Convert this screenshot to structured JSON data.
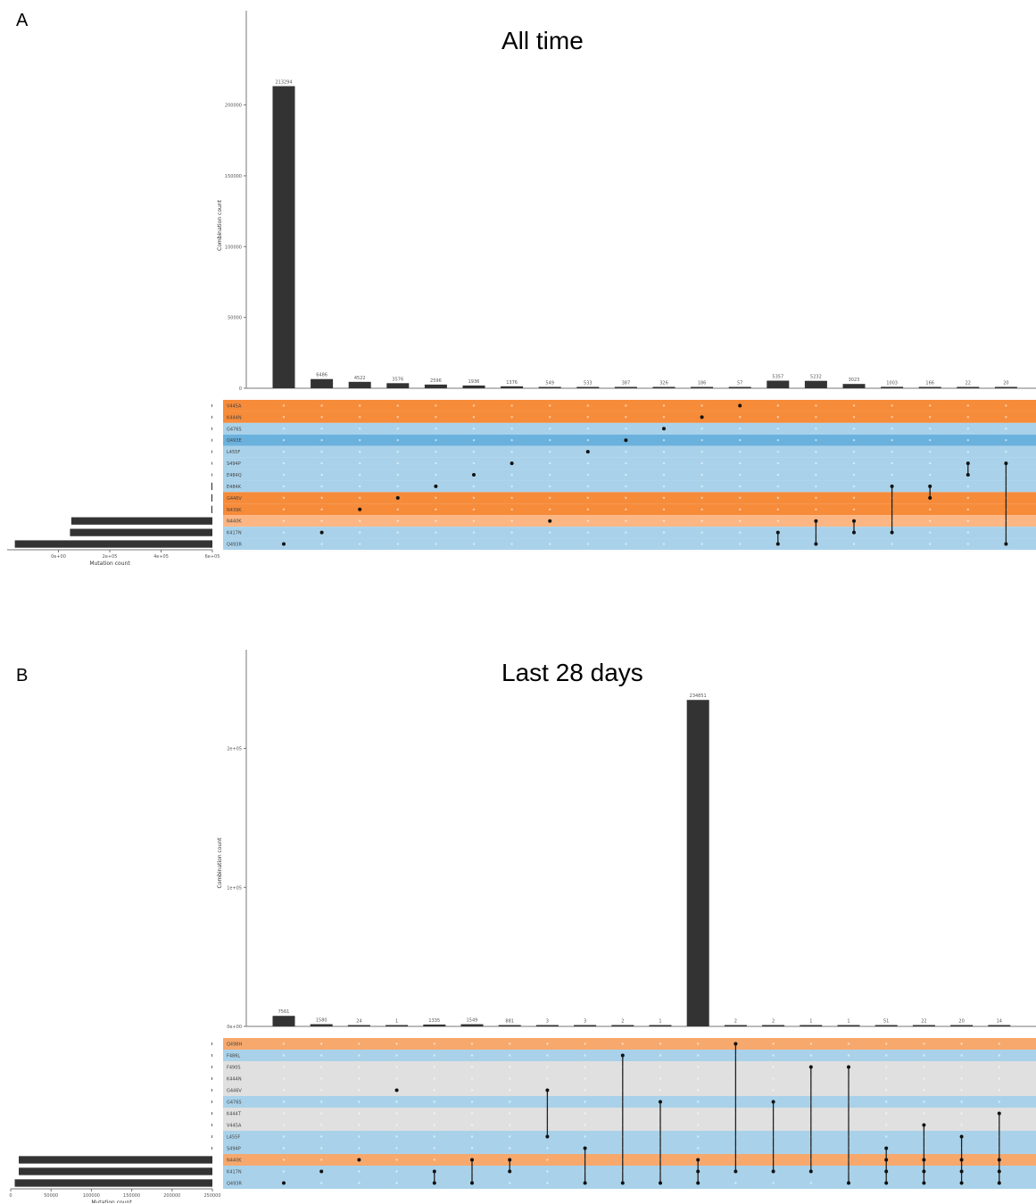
{
  "panels": [
    {
      "letter": "A",
      "title": "All time",
      "chart_data": {
        "type": "bar",
        "title": "All time",
        "ylabel": "Combination count",
        "xlabel": "Mutation count",
        "ylim": [
          0,
          230000
        ],
        "yticks": [
          0,
          50000,
          100000,
          150000,
          200000
        ],
        "ytick_labels": [
          "0",
          "50000",
          "100000",
          "150000",
          "200000"
        ],
        "set_ticks": [
          0,
          200000,
          400000,
          600000
        ],
        "set_tick_labels": [
          "6e+05",
          "4e+05",
          "2e+05",
          "0e+00"
        ],
        "sets": [
          "V445A",
          "K444N",
          "G476S",
          "Q493E",
          "L455F",
          "S494P",
          "E484Q",
          "E484K",
          "G446V",
          "N439K",
          "N440K",
          "K417N",
          "Q493R"
        ],
        "set_sizes": [
          0,
          0,
          0,
          0,
          0,
          0,
          0,
          4000,
          4000,
          4000,
          550000,
          555000,
          770000
        ],
        "row_colors": [
          "#f68b3a",
          "#f68b3a",
          "#a9d2ea",
          "#6bb1dd",
          "#a9d2ea",
          "#a9d2ea",
          "#a9d2ea",
          "#a9d2ea",
          "#f68b3a",
          "#f68b3a",
          "#fbb683",
          "#a9d2ea",
          "#a9d2ea"
        ],
        "values": [
          213294,
          6486,
          4522,
          3576,
          2596,
          1936,
          1376,
          549,
          533,
          387,
          326,
          186,
          57,
          5357,
          5232,
          3023,
          1003,
          166,
          22,
          20
        ],
        "value_labels": [
          "213294",
          "6486",
          "4522",
          "3576",
          "2596",
          "1936",
          "1376",
          "549",
          "533",
          "387",
          "326",
          "186",
          "57",
          "5357",
          "5232",
          "3023",
          "1003",
          "166",
          "22",
          "20"
        ],
        "combinations": [
          [
            12
          ],
          [
            11
          ],
          [
            9
          ],
          [
            8
          ],
          [
            7
          ],
          [
            6
          ],
          [
            5
          ],
          [
            10
          ],
          [
            4
          ],
          [
            3
          ],
          [
            2
          ],
          [
            1
          ],
          [
            0
          ],
          [
            11,
            12
          ],
          [
            10,
            12
          ],
          [
            10,
            11
          ],
          [
            7,
            11
          ],
          [
            7,
            8
          ],
          [
            5,
            6
          ],
          [
            5,
            12
          ]
        ]
      }
    },
    {
      "letter": "B",
      "title": "Last 28 days",
      "chart_data": {
        "type": "bar",
        "title": "Last 28 days",
        "ylabel": "Combination count",
        "xlabel": "Mutation count",
        "ylim": [
          0,
          235000
        ],
        "yticks": [
          0,
          100000,
          200000
        ],
        "ytick_labels": [
          "0e+00",
          "1e+05",
          "2e+05"
        ],
        "set_ticks": [
          0,
          50000,
          100000,
          150000,
          200000,
          250000
        ],
        "set_tick_labels": [
          "250000",
          "200000",
          "150000",
          "100000",
          "50000",
          "0"
        ],
        "sets": [
          "Q498H",
          "F486L",
          "F490S",
          "K444N",
          "G446V",
          "G476S",
          "K444T",
          "V445A",
          "L455F",
          "S494P",
          "N440K",
          "K417N",
          "Q493R"
        ],
        "set_sizes": [
          0,
          0,
          0,
          0,
          0,
          0,
          0,
          0,
          0,
          0,
          240000,
          240000,
          245000
        ],
        "row_colors": [
          "#f7a86c",
          "#a9d2ea",
          "#e0e0e0",
          "#e0e0e0",
          "#e0e0e0",
          "#a9d2ea",
          "#e0e0e0",
          "#e0e0e0",
          "#a9d2ea",
          "#a9d2ea",
          "#f7a86c",
          "#a9d2ea",
          "#a9d2ea"
        ],
        "values": [
          7561,
          1580,
          24,
          1,
          1335,
          1549,
          881,
          3,
          3,
          2,
          1,
          234851,
          2,
          2,
          1,
          1,
          51,
          22,
          20,
          14
        ],
        "value_labels": [
          "7561",
          "1580",
          "24",
          "1",
          "1335",
          "1549",
          "881",
          "3",
          "3",
          "2",
          "1",
          "234851",
          "2",
          "2",
          "1",
          "1",
          "51",
          "22",
          "20",
          "14"
        ],
        "combinations": [
          [
            12
          ],
          [
            11
          ],
          [
            10
          ],
          [
            4
          ],
          [
            11,
            12
          ],
          [
            10,
            12
          ],
          [
            10,
            11
          ],
          [
            4,
            8
          ],
          [
            9,
            12
          ],
          [
            1,
            12
          ],
          [
            5,
            12
          ],
          [
            10,
            11,
            12
          ],
          [
            0,
            11
          ],
          [
            5,
            11
          ],
          [
            2,
            11
          ],
          [
            2,
            12
          ],
          [
            9,
            10,
            11,
            12
          ],
          [
            7,
            10,
            11,
            12
          ],
          [
            8,
            10,
            11,
            12
          ],
          [
            6,
            10,
            11,
            12
          ]
        ]
      }
    }
  ]
}
